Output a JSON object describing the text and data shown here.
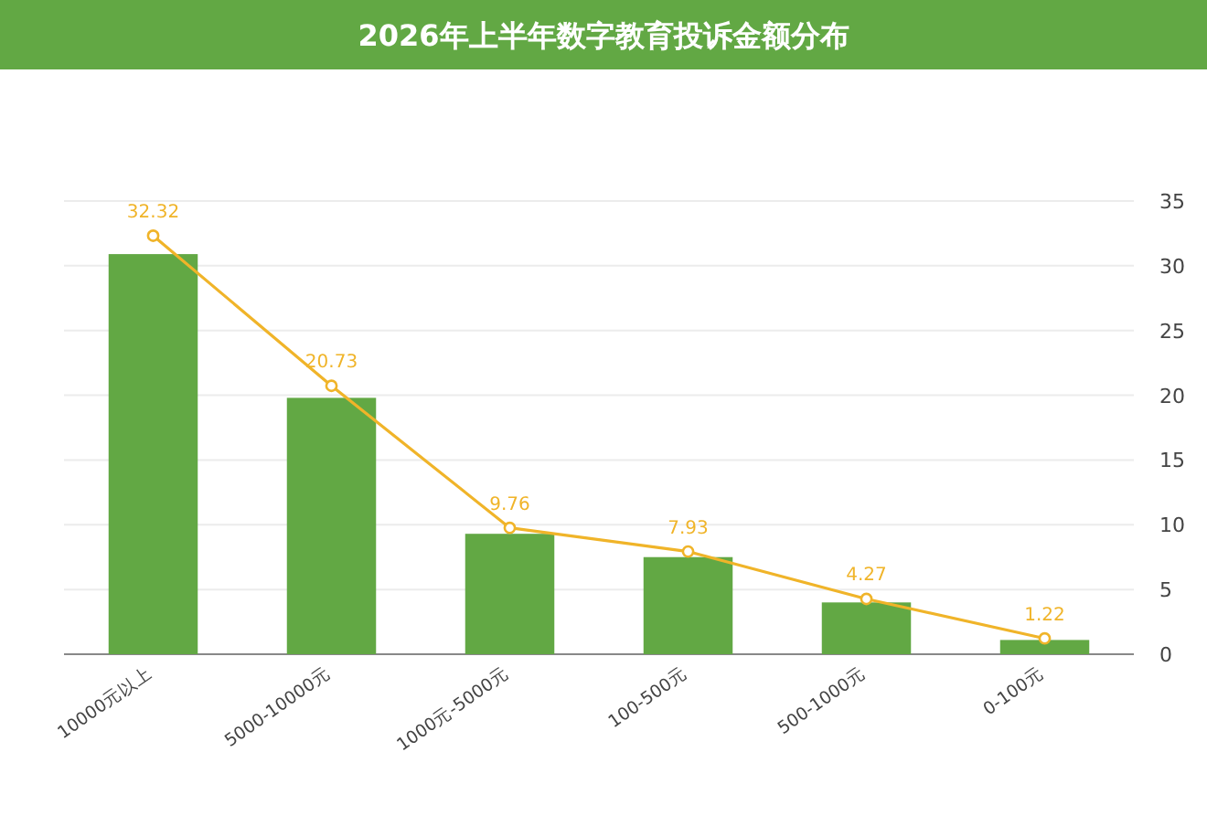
{
  "chart_data": {
    "type": "bar",
    "title": "2026年上半年数字教育投诉金额分布",
    "categories": [
      "10000元以上",
      "5000-10000元",
      "1000元-5000元",
      "100-500元",
      "500-1000元",
      "0-100元"
    ],
    "series": [
      {
        "color": "#62a844",
        "values": [
          30.9,
          19.8,
          9.3,
          7.5,
          4.0,
          1.1
        ]
      },
      {
        "type": "line",
        "color": "#f0b429",
        "marker": "circle",
        "values": [
          32.32,
          20.73,
          9.76,
          7.93,
          4.27,
          1.22
        ],
        "value_labels": [
          "32.32",
          "20.73",
          "9.76",
          "7.93",
          "4.27",
          "1.22"
        ]
      }
    ],
    "ylim": [
      0,
      35
    ],
    "yticks": [
      0,
      5,
      10,
      15,
      20,
      25,
      30,
      35
    ],
    "grid": "y"
  }
}
